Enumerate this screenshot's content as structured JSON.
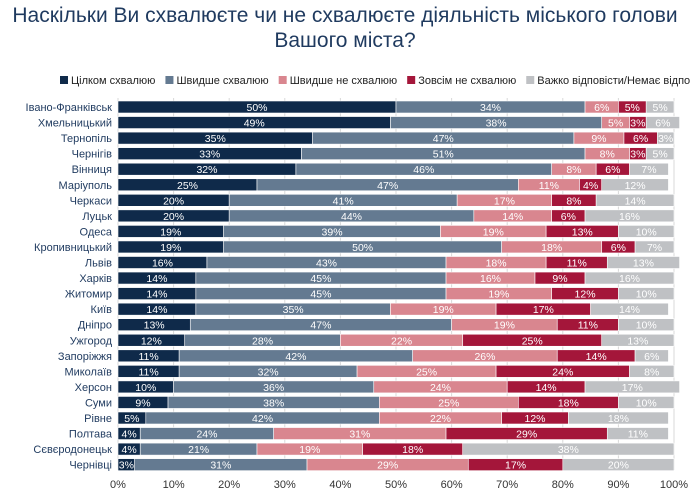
{
  "chart_data": {
    "type": "bar",
    "orientation": "horizontal",
    "stacked": true,
    "title_lines": [
      "Наскільки Ви схвалюєте чи не схвалюєте діяльність міського голови",
      "Вашого міста?"
    ],
    "legend_position": "top",
    "xlim": [
      0,
      100
    ],
    "x_ticks": [
      "0%",
      "10%",
      "20%",
      "30%",
      "40%",
      "50%",
      "60%",
      "70%",
      "80%",
      "90%",
      "100%"
    ],
    "grid": true,
    "categories": [
      "Івано-Франківськ",
      "Хмельницький",
      "Тернопіль",
      "Чернігів",
      "Вінниця",
      "Маріуполь",
      "Черкаси",
      "Луцьк",
      "Одеса",
      "Кропивницький",
      "Львів",
      "Харків",
      "Житомир",
      "Київ",
      "Дніпро",
      "Ужгород",
      "Запоріжжя",
      "Миколаїв",
      "Херсон",
      "Суми",
      "Рівне",
      "Полтава",
      "Сєвєродонецьк",
      "Чернівці"
    ],
    "series": [
      {
        "name": "Цілком схвалюю",
        "color": "#0f2a4a",
        "values": [
          50,
          49,
          35,
          33,
          32,
          25,
          20,
          20,
          19,
          19,
          16,
          14,
          14,
          14,
          13,
          12,
          11,
          11,
          10,
          9,
          5,
          4,
          4,
          3
        ]
      },
      {
        "name": "Швидше схвалюю",
        "color": "#647a91",
        "values": [
          34,
          38,
          47,
          51,
          46,
          47,
          41,
          44,
          39,
          50,
          43,
          45,
          45,
          35,
          47,
          28,
          42,
          32,
          36,
          38,
          42,
          24,
          21,
          31
        ]
      },
      {
        "name": "Швидше не схвалюю",
        "color": "#d9868f",
        "values": [
          6,
          5,
          9,
          8,
          8,
          11,
          17,
          14,
          19,
          18,
          18,
          16,
          19,
          19,
          19,
          22,
          26,
          25,
          24,
          25,
          22,
          31,
          19,
          29
        ]
      },
      {
        "name": "Зовсім не схвалюю",
        "color": "#a4163a",
        "values": [
          5,
          3,
          6,
          3,
          6,
          4,
          8,
          6,
          13,
          6,
          11,
          9,
          12,
          17,
          11,
          25,
          14,
          24,
          14,
          18,
          12,
          29,
          18,
          17
        ]
      },
      {
        "name": "Важко відповісти/Немає відповіді",
        "color": "#bfc1c4",
        "values": [
          5,
          6,
          3,
          5,
          7,
          12,
          14,
          16,
          10,
          7,
          13,
          16,
          10,
          14,
          10,
          13,
          6,
          8,
          17,
          10,
          18,
          11,
          38,
          20
        ]
      }
    ]
  }
}
